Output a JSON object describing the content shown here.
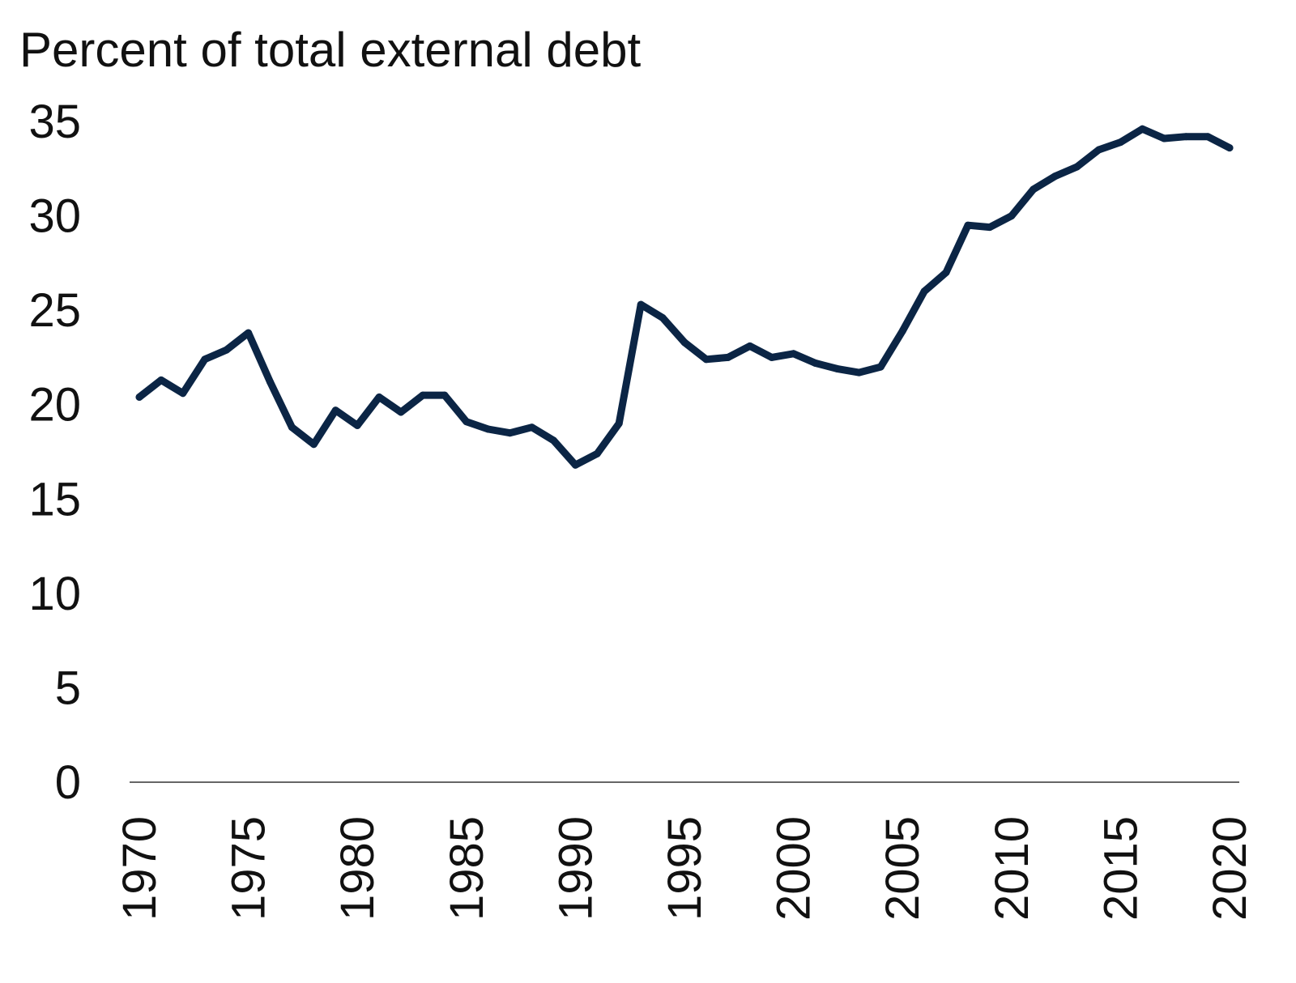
{
  "chart_data": {
    "type": "line",
    "title": "Percent of total external debt",
    "xlabel": "",
    "ylabel": "",
    "xlim": [
      1970,
      2020
    ],
    "ylim": [
      0,
      35
    ],
    "grid": false,
    "legend": "none",
    "line_color": "#0b2545",
    "axis_color": "#333333",
    "y_ticks": [
      0,
      5,
      10,
      15,
      20,
      25,
      30,
      35
    ],
    "x_ticks": [
      1970,
      1975,
      1980,
      1985,
      1990,
      1995,
      2000,
      2005,
      2010,
      2015,
      2020
    ],
    "series": [
      {
        "x": [
          1970,
          1971,
          1972,
          1973,
          1974,
          1975,
          1976,
          1977,
          1978,
          1979,
          1980,
          1981,
          1982,
          1983,
          1984,
          1985,
          1986,
          1987,
          1988,
          1989,
          1990,
          1991,
          1992,
          1993,
          1994,
          1995,
          1996,
          1997,
          1998,
          1999,
          2000,
          2001,
          2002,
          2003,
          2004,
          2005,
          2006,
          2007,
          2008,
          2009,
          2010,
          2011,
          2012,
          2013,
          2014,
          2015,
          2016,
          2017,
          2018,
          2019,
          2020
        ],
        "values": [
          20.4,
          21.3,
          20.6,
          22.4,
          22.9,
          23.8,
          21.2,
          18.8,
          17.9,
          19.7,
          18.9,
          20.4,
          19.6,
          20.5,
          20.5,
          19.1,
          18.7,
          18.5,
          18.8,
          18.1,
          16.8,
          17.4,
          19.0,
          25.3,
          24.6,
          23.3,
          22.4,
          22.5,
          23.1,
          22.5,
          22.7,
          22.2,
          21.9,
          21.7,
          22.0,
          23.9,
          26.0,
          27.0,
          29.5,
          29.4,
          30.0,
          31.4,
          32.1,
          32.6,
          33.5,
          33.9,
          34.6,
          34.1,
          34.2,
          34.2,
          33.6
        ]
      }
    ]
  }
}
